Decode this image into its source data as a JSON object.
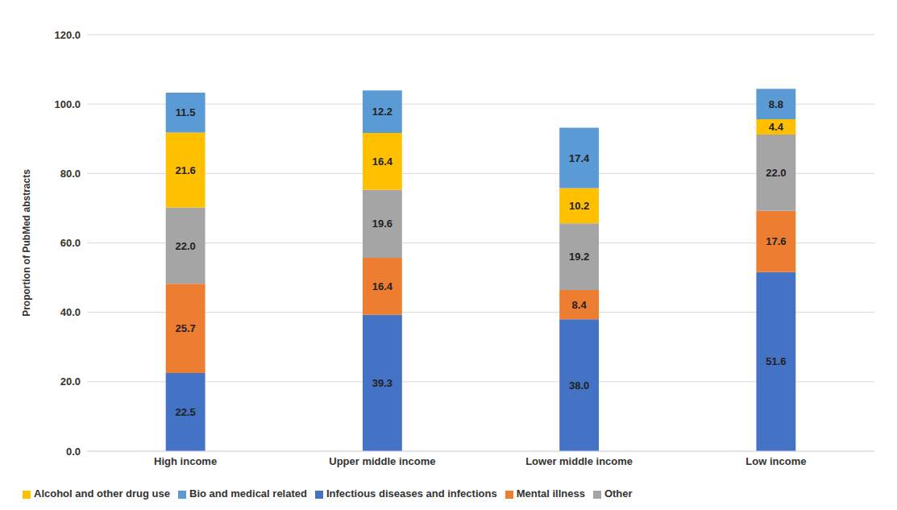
{
  "chart_data": {
    "type": "bar",
    "stacked": true,
    "orientation": "vertical",
    "y_label": "Proportion of PubMed abstracts",
    "categories": [
      "High income",
      "Upper middle income",
      "Lower middle income",
      "Low income"
    ],
    "series": [
      {
        "name": "Infectious diseases and infections",
        "color": "#4472c4",
        "values": [
          22.5,
          39.3,
          38.0,
          51.6
        ],
        "value_labels": [
          "22.5",
          "39.3",
          "38.0",
          "51.6"
        ]
      },
      {
        "name": "Mental illness",
        "color": "#ed7d31",
        "values": [
          25.7,
          16.4,
          8.4,
          17.6
        ],
        "value_labels": [
          "25.7",
          "16.4",
          "8.4",
          "17.6"
        ]
      },
      {
        "name": "Other",
        "color": "#a5a5a5",
        "values": [
          22.0,
          19.6,
          19.2,
          22.0
        ],
        "value_labels": [
          "22.0",
          "19.6",
          "19.2",
          "22.0"
        ]
      },
      {
        "name": "Alcohol and other drug use",
        "color": "#ffc000",
        "values": [
          21.6,
          16.4,
          10.2,
          4.4
        ],
        "value_labels": [
          "21.6",
          "16.4",
          "10.2",
          "4.4"
        ]
      },
      {
        "name": "Bio and medical related",
        "color": "#5b9bd5",
        "values": [
          11.5,
          12.2,
          17.4,
          8.8
        ],
        "value_labels": [
          "11.5",
          "12.2",
          "17.4",
          "8.8"
        ]
      }
    ],
    "ylim": [
      0,
      120
    ],
    "yticks": [
      {
        "value": 0,
        "label": "0.0"
      },
      {
        "value": 20,
        "label": "20.0"
      },
      {
        "value": 40,
        "label": "40.0"
      },
      {
        "value": 60,
        "label": "60.0"
      },
      {
        "value": 80,
        "label": "80.0"
      },
      {
        "value": 100,
        "label": "100.0"
      },
      {
        "value": 120,
        "label": "120.0"
      }
    ],
    "grid": true,
    "legend": "bottom",
    "data_labels": true
  }
}
